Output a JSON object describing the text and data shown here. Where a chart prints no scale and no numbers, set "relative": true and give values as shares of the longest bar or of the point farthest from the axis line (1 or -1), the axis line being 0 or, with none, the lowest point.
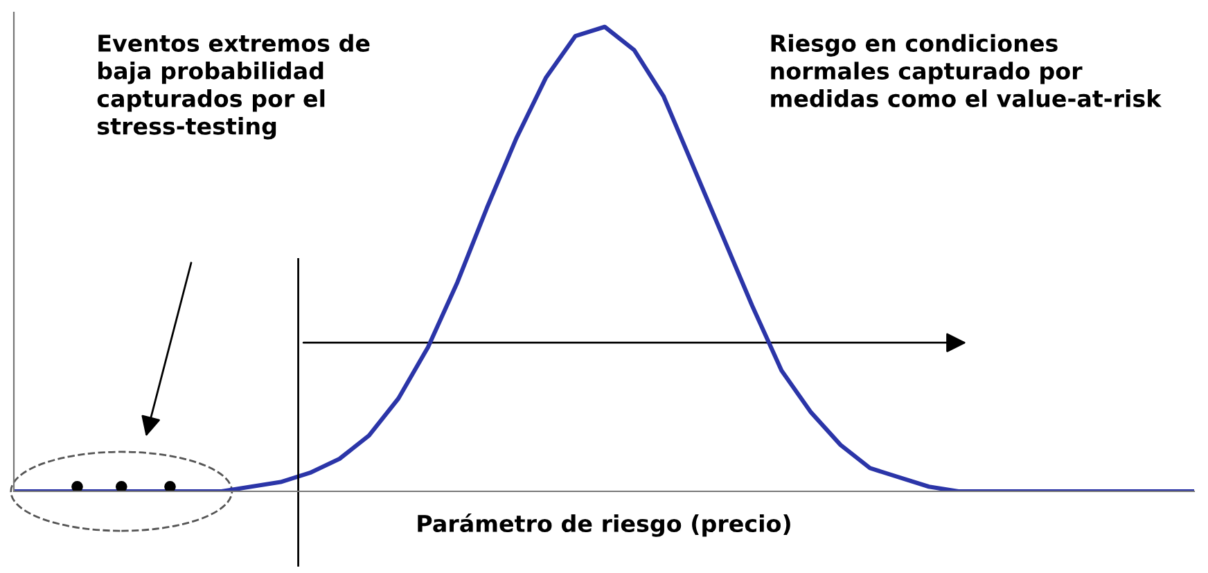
{
  "chart_data": {
    "type": "line",
    "relative": true,
    "xlabel": "Parámetro de riesgo (precio)",
    "categories": [
      null,
      null,
      null,
      null,
      null,
      null,
      null,
      null,
      null,
      null,
      null,
      null,
      null,
      null,
      null,
      null,
      null,
      null,
      null,
      null,
      null,
      null,
      null,
      null,
      null,
      null,
      null,
      null,
      null,
      null,
      null,
      null,
      null,
      null,
      null,
      null,
      null,
      null,
      null,
      null,
      null
    ],
    "series": [
      {
        "color": "#2b35a8",
        "values": [
          0,
          0,
          0,
          0,
          0,
          0,
          0,
          0,
          0.01,
          0.02,
          0.04,
          0.07,
          0.12,
          0.2,
          0.31,
          0.45,
          0.61,
          0.76,
          0.89,
          0.98,
          1,
          0.95,
          0.85,
          0.7,
          0.55,
          0.4,
          0.26,
          0.17,
          0.1,
          0.05,
          0.03,
          0.01,
          0,
          0,
          0,
          0,
          0,
          0,
          0,
          0,
          0
        ]
      }
    ],
    "annotations": [
      "Eventos extremos de\nbaja probabilidad\ncapturados por el\nstress-testing",
      "Riesgo en condiciones\nnormales capturado por\nmedidas como el value-at-risk"
    ],
    "marker": "none",
    "line_style": "solid",
    "grid": false
  }
}
